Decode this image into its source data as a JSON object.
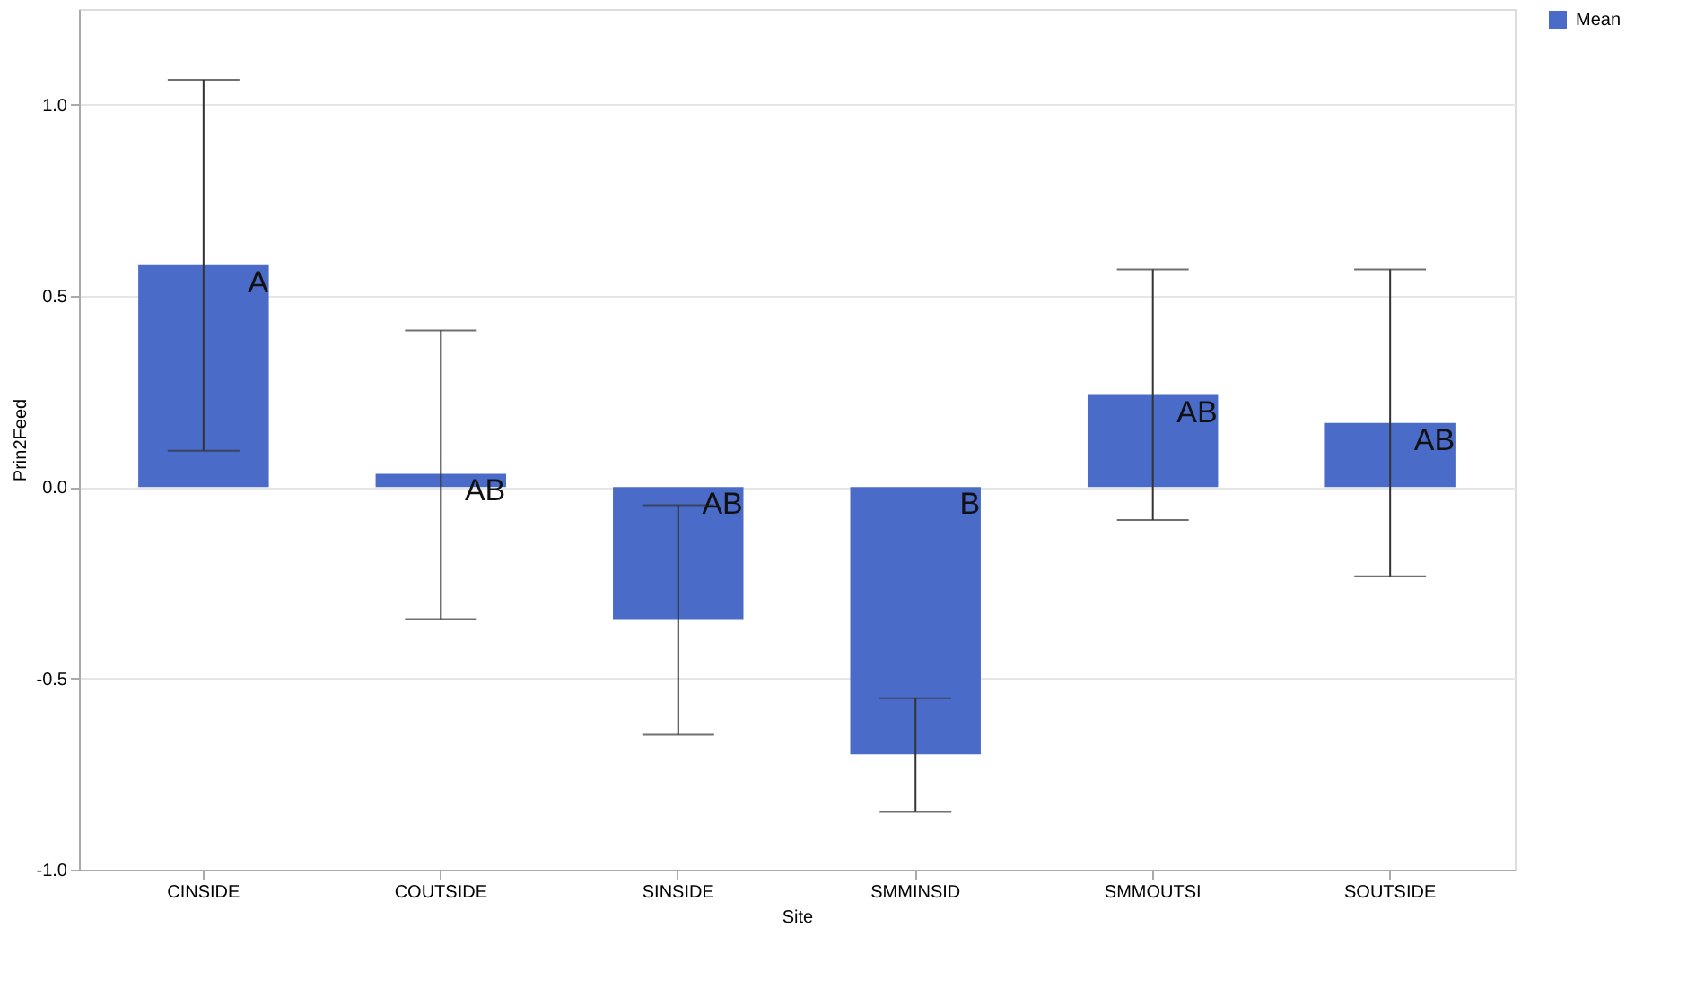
{
  "chart_data": {
    "type": "bar",
    "xlabel": "Site",
    "ylabel": "Prin2Feed",
    "categories": [
      "CINSIDE",
      "COUTSIDE",
      "SINSIDE",
      "SMMINSID",
      "SMMOUTSI",
      "SOUTSIDE"
    ],
    "series": [
      {
        "name": "Mean",
        "color": "#4a6bc8",
        "values": [
          0.58,
          0.035,
          -0.345,
          -0.698,
          0.241,
          0.168
        ],
        "errors": [
          [
            0.095,
            1.065
          ],
          [
            -0.345,
            0.41
          ],
          [
            -0.647,
            -0.047
          ],
          [
            -0.849,
            -0.552
          ],
          [
            -0.086,
            0.569
          ],
          [
            -0.233,
            0.569
          ]
        ]
      }
    ],
    "ylim": [
      -1.0,
      1.25
    ],
    "yticks": [
      {
        "value": -1.0,
        "label": "-1.0"
      },
      {
        "value": -0.5,
        "label": "-0.5"
      },
      {
        "value": 0,
        "label": "0.0"
      },
      {
        "value": 0.5,
        "label": "0.5"
      },
      {
        "value": 1.0,
        "label": "1.0"
      }
    ],
    "grid": "y",
    "legend": "top right",
    "annotations": [
      {
        "text": "A",
        "x": "CINSIDE",
        "y": 0.58
      },
      {
        "text": "AB",
        "x": "COUTSIDE",
        "y": 0.035
      },
      {
        "text": "AB",
        "x": "SINSIDE",
        "y": 0
      },
      {
        "text": "B",
        "x": "SMMINSID",
        "y": 0
      },
      {
        "text": "AB",
        "x": "SMMOUTSI",
        "y": 0.241
      },
      {
        "text": "AB",
        "x": "SOUTSIDE",
        "y": 0.168
      }
    ]
  }
}
